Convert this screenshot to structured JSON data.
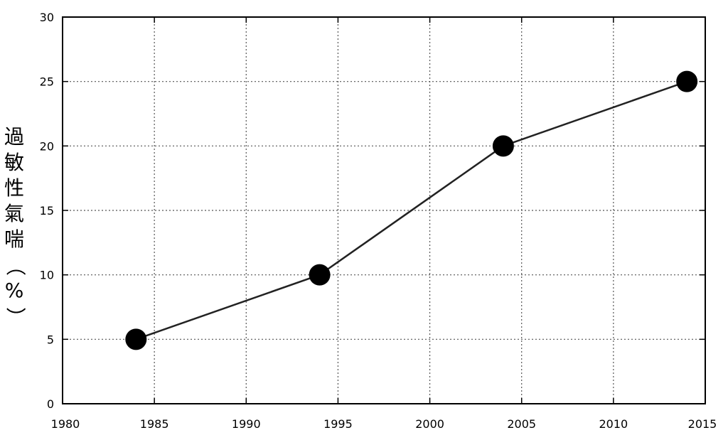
{
  "chart_data": {
    "type": "line",
    "title": "",
    "xlabel": "",
    "ylabel": "過敏性氣喘（%）",
    "x": [
      1984,
      1994,
      2004,
      2014
    ],
    "series": [
      {
        "values": [
          5,
          10,
          20,
          25
        ]
      }
    ],
    "xlim": [
      1980,
      2015
    ],
    "ylim": [
      0,
      30
    ],
    "xticks": [
      "1980",
      "1985",
      "1990",
      "1995",
      "2000",
      "2005",
      "2010",
      "2015"
    ],
    "yticks": [
      "0",
      "5",
      "10",
      "15",
      "20",
      "25",
      "30"
    ],
    "grid": true,
    "grid_style": "dotted",
    "legend": "none",
    "colors": {
      "line": "#222222",
      "marker": "#000000",
      "axis": "#000000",
      "grid": "#555555"
    }
  }
}
